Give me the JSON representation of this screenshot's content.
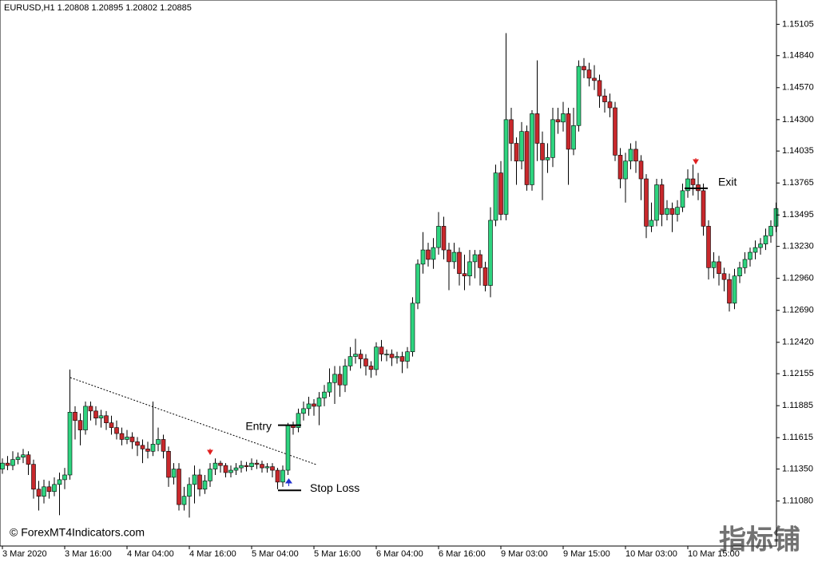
{
  "chart_data": {
    "type": "candlestick",
    "header": "EURUSD,H1  1.20808 1.20895 1.20802 1.20885",
    "watermark": "© ForexMT4Indicators.com",
    "corner_mark": "指标铺",
    "up_color": "#2ed47f",
    "down_color": "#c8282c",
    "ylim": [
      1.107,
      1.1531
    ],
    "yticks": [
      {
        "value": 1.15105,
        "label": "1.15105"
      },
      {
        "value": 1.1484,
        "label": "1.14840"
      },
      {
        "value": 1.1457,
        "label": "1.14570"
      },
      {
        "value": 1.143,
        "label": "1.14300"
      },
      {
        "value": 1.14035,
        "label": "1.14035"
      },
      {
        "value": 1.13765,
        "label": "1.13765"
      },
      {
        "value": 1.13495,
        "label": "1.13495"
      },
      {
        "value": 1.1323,
        "label": "1.13230"
      },
      {
        "value": 1.1296,
        "label": "1.12960"
      },
      {
        "value": 1.1269,
        "label": "1.12690"
      },
      {
        "value": 1.1242,
        "label": "1.12420"
      },
      {
        "value": 1.12155,
        "label": "1.12155"
      },
      {
        "value": 1.11885,
        "label": "1.11885"
      },
      {
        "value": 1.11615,
        "label": "1.11615"
      },
      {
        "value": 1.1135,
        "label": "1.11350"
      },
      {
        "value": 1.1108,
        "label": "1.11080"
      }
    ],
    "xticks": [
      {
        "value": 0,
        "label": "3 Mar 2020"
      },
      {
        "value": 12,
        "label": "3 Mar 16:00"
      },
      {
        "value": 24,
        "label": "4 Mar 04:00"
      },
      {
        "value": 36,
        "label": "4 Mar 16:00"
      },
      {
        "value": 48,
        "label": "5 Mar 04:00"
      },
      {
        "value": 60,
        "label": "5 Mar 16:00"
      },
      {
        "value": 72,
        "label": "6 Mar 04:00"
      },
      {
        "value": 84,
        "label": "6 Mar 16:00"
      },
      {
        "value": 96,
        "label": "9 Mar 03:00"
      },
      {
        "value": 108,
        "label": "9 Mar 15:00"
      },
      {
        "value": 120,
        "label": "10 Mar 03:00"
      },
      {
        "value": 132,
        "label": "10 Mar 15:00"
      }
    ],
    "annotations": [
      {
        "text": "Entry",
        "value": 1.1172
      },
      {
        "text": "Stop Loss",
        "value": 1.1117
      },
      {
        "text": "Exit",
        "value": 1.1372
      }
    ],
    "open": [
      1.1135,
      1.114,
      1.1138,
      1.1143,
      1.1145,
      1.1147,
      1.1139,
      1.1118,
      1.1112,
      1.112,
      1.1116,
      1.1122,
      1.1126,
      1.113,
      1.1183,
      1.1176,
      1.1168,
      1.1188,
      1.1184,
      1.1178,
      1.118,
      1.1174,
      1.117,
      1.1165,
      1.116,
      1.1162,
      1.1158,
      1.1155,
      1.1152,
      1.115,
      1.1156,
      1.116,
      1.115,
      1.1128,
      1.1135,
      1.1105,
      1.1112,
      1.1122,
      1.113,
      1.1118,
      1.1125,
      1.1135,
      1.114,
      1.1138,
      1.1132,
      1.1134,
      1.1136,
      1.1138,
      1.1137,
      1.114,
      1.1139,
      1.1136,
      1.1137,
      1.1134,
      1.1124,
      1.1134,
      1.1172,
      1.117,
      1.1182,
      1.1186,
      1.119,
      1.1188,
      1.1195,
      1.12,
      1.1208,
      1.1215,
      1.1206,
      1.1222,
      1.123,
      1.1232,
      1.1228,
      1.1222,
      1.1219,
      1.1238,
      1.1232,
      1.1232,
      1.1229,
      1.123,
      1.1226,
      1.1234,
      1.1275,
      1.1308,
      1.132,
      1.1312,
      1.1322,
      1.134,
      1.132,
      1.131,
      1.1318,
      1.13,
      1.1298,
      1.131,
      1.1316,
      1.1305,
      1.129,
      1.1345,
      1.1385,
      1.135,
      1.143,
      1.141,
      1.1395,
      1.142,
      1.1375,
      1.1435,
      1.141,
      1.1396,
      1.1398,
      1.143,
      1.1428,
      1.1435,
      1.1405,
      1.1425,
      1.1475,
      1.1472,
      1.1465,
      1.1463,
      1.145,
      1.1445,
      1.144,
      1.14,
      1.138,
      1.1395,
      1.1405,
      1.1395,
      1.138,
      1.134,
      1.1345,
      1.1375,
      1.135,
      1.1355,
      1.135,
      1.1356,
      1.137,
      1.138,
      1.1375,
      1.137,
      1.134,
      1.1305,
      1.131,
      1.13,
      1.1295,
      1.1275,
      1.1298,
      1.1305,
      1.1312,
      1.1318,
      1.1322,
      1.1325,
      1.1332,
      1.134
    ],
    "high": [
      1.1144,
      1.1146,
      1.115,
      1.1149,
      1.1152,
      1.115,
      1.1143,
      1.1125,
      1.1126,
      1.1125,
      1.1128,
      1.1132,
      1.1136,
      1.1219,
      1.1188,
      1.1182,
      1.1192,
      1.1192,
      1.1188,
      1.1185,
      1.1184,
      1.118,
      1.1176,
      1.117,
      1.1168,
      1.1166,
      1.1162,
      1.116,
      1.1158,
      1.1192,
      1.117,
      1.1164,
      1.1154,
      1.114,
      1.114,
      1.112,
      1.1128,
      1.1138,
      1.1135,
      1.113,
      1.114,
      1.1144,
      1.1142,
      1.114,
      1.1138,
      1.114,
      1.1142,
      1.1141,
      1.1144,
      1.1143,
      1.1142,
      1.114,
      1.114,
      1.1136,
      1.1138,
      1.1174,
      1.1175,
      1.1186,
      1.1192,
      1.1196,
      1.1194,
      1.12,
      1.1206,
      1.122,
      1.1222,
      1.1222,
      1.1228,
      1.1238,
      1.1245,
      1.1236,
      1.1232,
      1.1226,
      1.1242,
      1.1244,
      1.1236,
      1.1236,
      1.1234,
      1.1234,
      1.1238,
      1.128,
      1.1312,
      1.1335,
      1.1326,
      1.133,
      1.1352,
      1.1348,
      1.1326,
      1.1326,
      1.1322,
      1.1316,
      1.132,
      1.132,
      1.132,
      1.131,
      1.1356,
      1.1392,
      1.1395,
      1.1503,
      1.144,
      1.1415,
      1.1428,
      1.1425,
      1.1438,
      1.148,
      1.142,
      1.141,
      1.144,
      1.144,
      1.1445,
      1.144,
      1.144,
      1.148,
      1.1482,
      1.1478,
      1.1476,
      1.1468,
      1.1456,
      1.1452,
      1.1445,
      1.1406,
      1.1402,
      1.141,
      1.1412,
      1.14,
      1.1384,
      1.136,
      1.138,
      1.138,
      1.1362,
      1.136,
      1.1362,
      1.1376,
      1.1388,
      1.1392,
      1.1385,
      1.1376,
      1.1345,
      1.1318,
      1.1315,
      1.1305,
      1.13,
      1.1304,
      1.131,
      1.1318,
      1.1322,
      1.1328,
      1.133,
      1.1338,
      1.1345,
      1.136
    ],
    "low": [
      1.1131,
      1.1134,
      1.1134,
      1.1139,
      1.114,
      1.113,
      1.111,
      1.11,
      1.1106,
      1.111,
      1.1112,
      1.1096,
      1.1118,
      1.1126,
      1.116,
      1.1155,
      1.1164,
      1.1176,
      1.1172,
      1.117,
      1.1168,
      1.1164,
      1.116,
      1.1155,
      1.1156,
      1.1152,
      1.1146,
      1.114,
      1.1144,
      1.1146,
      1.115,
      1.1144,
      1.112,
      1.1122,
      1.11,
      1.11,
      1.1094,
      1.1106,
      1.1112,
      1.1114,
      1.112,
      1.113,
      1.1132,
      1.1128,
      1.1128,
      1.113,
      1.1132,
      1.1133,
      1.1134,
      1.1135,
      1.1132,
      1.1132,
      1.1128,
      1.1118,
      1.112,
      1.113,
      1.1164,
      1.1166,
      1.1176,
      1.118,
      1.118,
      1.1172,
      1.1188,
      1.1196,
      1.119,
      1.1196,
      1.12,
      1.1218,
      1.1224,
      1.122,
      1.1214,
      1.1212,
      1.1214,
      1.1226,
      1.1226,
      1.1222,
      1.1224,
      1.1216,
      1.122,
      1.123,
      1.127,
      1.13,
      1.1306,
      1.1304,
      1.1316,
      1.1312,
      1.1286,
      1.1304,
      1.129,
      1.1286,
      1.129,
      1.1296,
      1.129,
      1.1285,
      1.128,
      1.134,
      1.1345,
      1.1345,
      1.1395,
      1.1375,
      1.1388,
      1.137,
      1.137,
      1.1395,
      1.1362,
      1.1385,
      1.139,
      1.1418,
      1.142,
      1.1375,
      1.14,
      1.142,
      1.1465,
      1.1458,
      1.1455,
      1.144,
      1.1436,
      1.1432,
      1.1395,
      1.1372,
      1.136,
      1.1388,
      1.1385,
      1.1362,
      1.133,
      1.1335,
      1.134,
      1.134,
      1.1345,
      1.1335,
      1.1344,
      1.1352,
      1.1364,
      1.1366,
      1.1362,
      1.1332,
      1.1295,
      1.1296,
      1.129,
      1.1285,
      1.1268,
      1.127,
      1.1292,
      1.13,
      1.1306,
      1.1312,
      1.1316,
      1.132,
      1.1326,
      1.1335
    ],
    "close": [
      1.114,
      1.1138,
      1.1143,
      1.1145,
      1.1147,
      1.1139,
      1.1118,
      1.1112,
      1.112,
      1.1116,
      1.1122,
      1.1126,
      1.113,
      1.1183,
      1.1176,
      1.1168,
      1.1188,
      1.1184,
      1.1178,
      1.118,
      1.1174,
      1.117,
      1.1165,
      1.116,
      1.1162,
      1.1158,
      1.1155,
      1.1152,
      1.115,
      1.1156,
      1.116,
      1.115,
      1.1128,
      1.1135,
      1.1105,
      1.1112,
      1.1122,
      1.113,
      1.1118,
      1.1125,
      1.1135,
      1.114,
      1.1138,
      1.1132,
      1.1134,
      1.1136,
      1.1138,
      1.1137,
      1.114,
      1.1139,
      1.1136,
      1.1137,
      1.1134,
      1.1124,
      1.1134,
      1.1172,
      1.117,
      1.1182,
      1.1186,
      1.119,
      1.1188,
      1.1195,
      1.12,
      1.1208,
      1.1215,
      1.1206,
      1.1222,
      1.123,
      1.1232,
      1.1228,
      1.1222,
      1.1219,
      1.1238,
      1.1232,
      1.1232,
      1.1229,
      1.123,
      1.1226,
      1.1234,
      1.1275,
      1.1308,
      1.132,
      1.1312,
      1.1322,
      1.134,
      1.132,
      1.131,
      1.1318,
      1.13,
      1.1298,
      1.131,
      1.1316,
      1.1305,
      1.129,
      1.1345,
      1.1385,
      1.135,
      1.143,
      1.141,
      1.1395,
      1.142,
      1.1375,
      1.1435,
      1.141,
      1.1396,
      1.1398,
      1.143,
      1.1428,
      1.1435,
      1.1405,
      1.1425,
      1.1475,
      1.1472,
      1.1465,
      1.1463,
      1.145,
      1.1445,
      1.144,
      1.14,
      1.138,
      1.1395,
      1.1405,
      1.1395,
      1.138,
      1.134,
      1.1345,
      1.1375,
      1.135,
      1.1355,
      1.135,
      1.1356,
      1.137,
      1.138,
      1.1375,
      1.137,
      1.134,
      1.1305,
      1.131,
      1.13,
      1.1295,
      1.1275,
      1.1298,
      1.1305,
      1.1312,
      1.1318,
      1.1322,
      1.1325,
      1.1332,
      1.134,
      1.1355
    ]
  }
}
